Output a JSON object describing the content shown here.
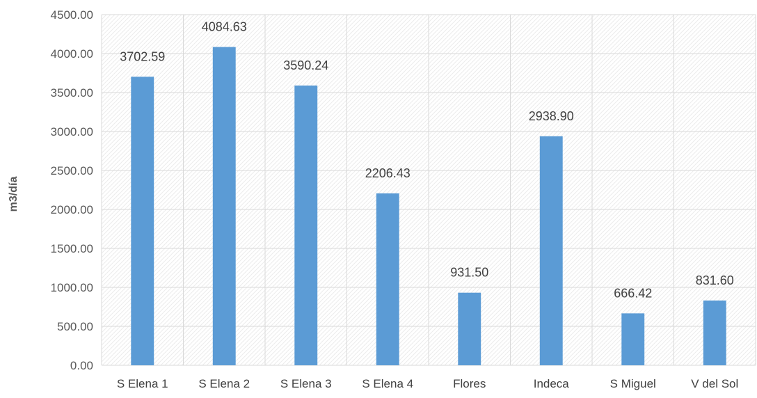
{
  "chart_data": {
    "type": "bar",
    "title": "",
    "xlabel": "",
    "ylabel": "m3/día",
    "categories": [
      "S Elena 1",
      "S Elena 2",
      "S Elena 3",
      "S Elena 4",
      "Flores",
      "Indeca",
      "S Miguel",
      "V del Sol"
    ],
    "values": [
      3702.59,
      4084.63,
      3590.24,
      2206.43,
      931.5,
      2938.9,
      666.42,
      831.6
    ],
    "value_labels": [
      "3702.59",
      "4084.63",
      "3590.24",
      "2206.43",
      "931.50",
      "2938.90",
      "666.42",
      "831.60"
    ],
    "ylim": [
      0,
      4500
    ],
    "y_ticks": [
      0,
      500,
      1000,
      1500,
      2000,
      2500,
      3000,
      3500,
      4000,
      4500
    ],
    "y_tick_labels": [
      "0.00",
      "500.00",
      "1000.00",
      "1500.00",
      "2000.00",
      "2500.00",
      "3000.00",
      "3500.00",
      "4000.00",
      "4500.00"
    ],
    "grid": true,
    "legend": "none",
    "bar_color": "#5B9BD5",
    "grid_color": "#D9D9D9"
  }
}
